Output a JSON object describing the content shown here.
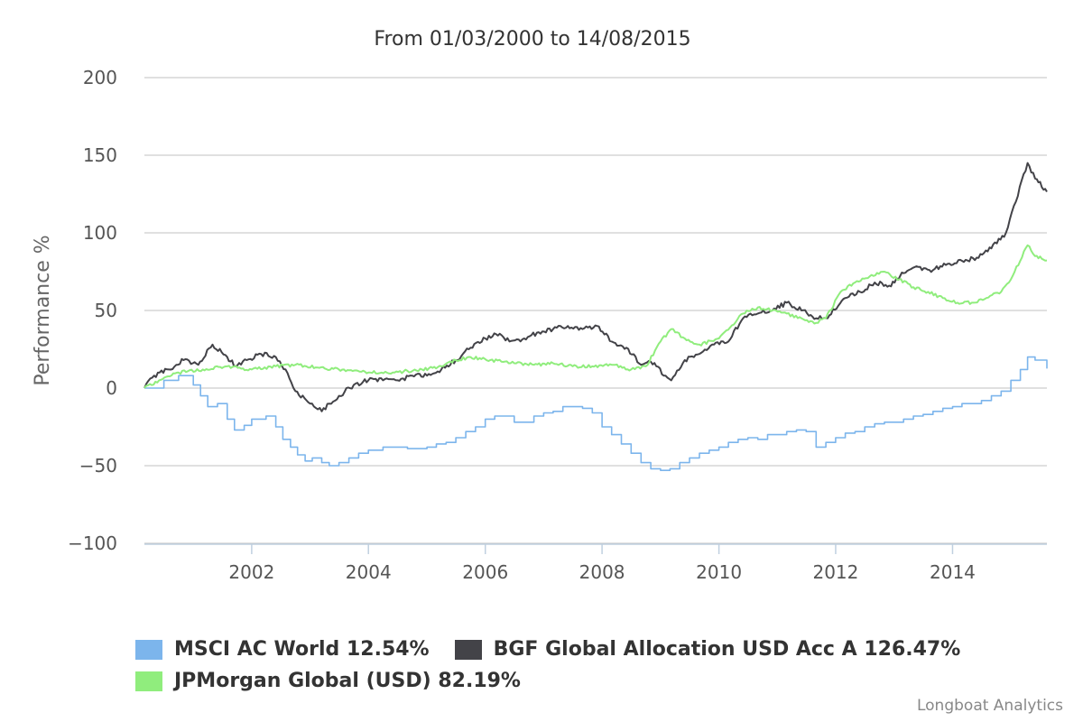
{
  "credits": "Longboat Analytics",
  "colors": {
    "msci": "#7cb5ec",
    "bgf": "#434348",
    "jpm": "#90ed7d",
    "grid": "#c0c0c0",
    "axis": "#c0d0e0"
  },
  "legend": [
    {
      "name": "MSCI AC World",
      "value": "12.54%",
      "color": "#7cb5ec"
    },
    {
      "name": "BGF Global Allocation USD Acc A",
      "value": "126.47%",
      "color": "#434348"
    },
    {
      "name": "JPMorgan Global (USD)",
      "value": "82.19%",
      "color": "#90ed7d"
    }
  ],
  "chart_data": {
    "type": "line",
    "title": "From 01/03/2000 to 14/08/2015",
    "xlabel": "",
    "ylabel": "Performance %",
    "x_ticks": [
      "2002",
      "2004",
      "2006",
      "2008",
      "2010",
      "2012",
      "2014"
    ],
    "y_ticks": [
      "200",
      "150",
      "100",
      "50",
      "0",
      "−50",
      "−100"
    ],
    "xlim": [
      "2000-03-01",
      "2015-08-14"
    ],
    "ylim": [
      -100,
      200
    ],
    "grid": true,
    "legend_position": "bottom-left",
    "series": [
      {
        "name": "MSCI AC World",
        "color": "#7cb5ec",
        "step": true,
        "x": [
          "2000-03-01",
          "2000-07-01",
          "2000-10-01",
          "2001-01-01",
          "2001-02-15",
          "2001-04-01",
          "2001-06-01",
          "2001-08-01",
          "2001-09-15",
          "2001-11-15",
          "2002-01-01",
          "2002-04-01",
          "2002-06-01",
          "2002-07-15",
          "2002-09-01",
          "2002-10-15",
          "2002-12-01",
          "2003-01-15",
          "2003-03-15",
          "2003-05-01",
          "2003-07-01",
          "2003-09-01",
          "2003-11-01",
          "2004-01-01",
          "2004-04-01",
          "2004-07-01",
          "2004-09-01",
          "2004-11-01",
          "2005-01-01",
          "2005-03-01",
          "2005-05-01",
          "2005-07-01",
          "2005-09-01",
          "2005-11-01",
          "2006-01-01",
          "2006-03-01",
          "2006-05-01",
          "2006-07-01",
          "2006-09-01",
          "2006-11-01",
          "2007-01-01",
          "2007-03-01",
          "2007-05-01",
          "2007-07-01",
          "2007-09-01",
          "2007-11-01",
          "2008-01-01",
          "2008-03-01",
          "2008-05-01",
          "2008-07-01",
          "2008-09-01",
          "2008-11-01",
          "2009-01-01",
          "2009-03-01",
          "2009-05-01",
          "2009-07-01",
          "2009-09-01",
          "2009-11-01",
          "2010-01-01",
          "2010-03-01",
          "2010-05-01",
          "2010-07-01",
          "2010-09-01",
          "2010-11-01",
          "2011-01-01",
          "2011-03-01",
          "2011-05-01",
          "2011-07-01",
          "2011-09-01",
          "2011-11-01",
          "2012-01-01",
          "2012-03-01",
          "2012-05-01",
          "2012-07-01",
          "2012-09-01",
          "2012-11-01",
          "2013-01-01",
          "2013-03-01",
          "2013-05-01",
          "2013-07-01",
          "2013-09-01",
          "2013-11-01",
          "2014-01-01",
          "2014-03-01",
          "2014-05-01",
          "2014-07-01",
          "2014-09-01",
          "2014-11-01",
          "2015-01-01",
          "2015-03-01",
          "2015-04-15",
          "2015-06-01",
          "2015-08-14"
        ],
        "y": [
          0,
          5,
          8,
          2,
          -5,
          -12,
          -10,
          -20,
          -27,
          -24,
          -20,
          -18,
          -25,
          -33,
          -38,
          -43,
          -47,
          -45,
          -48,
          -50,
          -48,
          -45,
          -42,
          -40,
          -38,
          -38,
          -39,
          -39,
          -38,
          -36,
          -35,
          -32,
          -28,
          -25,
          -20,
          -18,
          -18,
          -22,
          -22,
          -18,
          -16,
          -15,
          -12,
          -12,
          -13,
          -16,
          -25,
          -30,
          -36,
          -42,
          -48,
          -52,
          -53,
          -52,
          -48,
          -45,
          -42,
          -40,
          -38,
          -35,
          -33,
          -32,
          -33,
          -30,
          -30,
          -28,
          -27,
          -28,
          -38,
          -35,
          -32,
          -29,
          -28,
          -25,
          -23,
          -22,
          -22,
          -20,
          -18,
          -17,
          -15,
          -13,
          -12,
          -10,
          -10,
          -8,
          -5,
          -2,
          5,
          12,
          20,
          18,
          12.54
        ]
      },
      {
        "name": "BGF Global Allocation USD Acc A",
        "color": "#434348",
        "step": false,
        "x": [
          "2000-03-01",
          "2000-05-01",
          "2000-08-01",
          "2000-11-01",
          "2001-02-01",
          "2001-05-01",
          "2001-08-01",
          "2001-09-21",
          "2001-12-01",
          "2002-03-01",
          "2002-06-01",
          "2002-08-01",
          "2002-10-01",
          "2003-01-01",
          "2003-03-15",
          "2003-05-01",
          "2003-07-01",
          "2003-10-01",
          "2004-01-01",
          "2004-04-01",
          "2004-07-01",
          "2004-10-01",
          "2005-01-01",
          "2005-04-01",
          "2005-07-01",
          "2005-10-01",
          "2006-01-01",
          "2006-04-01",
          "2006-06-01",
          "2006-09-01",
          "2006-12-01",
          "2007-03-01",
          "2007-06-01",
          "2007-09-01",
          "2007-12-01",
          "2008-03-01",
          "2008-06-01",
          "2008-09-01",
          "2008-11-01",
          "2009-02-01",
          "2009-03-09",
          "2009-06-01",
          "2009-09-01",
          "2009-12-01",
          "2010-03-01",
          "2010-06-01",
          "2010-09-01",
          "2010-12-01",
          "2011-03-01",
          "2011-06-01",
          "2011-09-01",
          "2011-11-01",
          "2012-03-01",
          "2012-06-01",
          "2012-09-01",
          "2012-12-01",
          "2013-03-01",
          "2013-06-01",
          "2013-09-01",
          "2013-12-01",
          "2014-03-01",
          "2014-06-01",
          "2014-09-01",
          "2014-12-01",
          "2015-02-01",
          "2015-04-15",
          "2015-06-01",
          "2015-08-14"
        ],
        "y": [
          0,
          8,
          12,
          18,
          15,
          28,
          20,
          14,
          18,
          22,
          20,
          12,
          -2,
          -10,
          -15,
          -10,
          -5,
          2,
          5,
          5,
          5,
          8,
          8,
          12,
          18,
          26,
          32,
          35,
          30,
          32,
          36,
          38,
          40,
          38,
          40,
          30,
          26,
          15,
          17,
          8,
          5,
          18,
          22,
          28,
          30,
          45,
          48,
          50,
          55,
          50,
          45,
          45,
          58,
          62,
          68,
          66,
          74,
          78,
          76,
          80,
          82,
          84,
          90,
          100,
          120,
          145,
          135,
          126.47
        ]
      },
      {
        "name": "JPMorgan Global (USD)",
        "color": "#90ed7d",
        "step": false,
        "x": [
          "2000-03-01",
          "2000-06-01",
          "2000-10-01",
          "2001-03-01",
          "2001-08-01",
          "2002-01-01",
          "2002-06-01",
          "2002-10-01",
          "2003-03-01",
          "2003-08-01",
          "2004-01-01",
          "2004-06-01",
          "2004-12-01",
          "2005-04-01",
          "2005-07-01",
          "2005-10-01",
          "2006-02-01",
          "2006-07-01",
          "2006-11-01",
          "2007-03-01",
          "2007-07-01",
          "2007-11-01",
          "2008-03-01",
          "2008-07-01",
          "2008-10-01",
          "2009-01-01",
          "2009-03-09",
          "2009-06-01",
          "2009-09-01",
          "2010-01-01",
          "2010-06-01",
          "2010-09-01",
          "2010-12-01",
          "2011-03-01",
          "2011-06-01",
          "2011-09-01",
          "2011-11-01",
          "2012-02-01",
          "2012-05-01",
          "2012-08-01",
          "2012-11-01",
          "2013-02-01",
          "2013-05-01",
          "2013-08-01",
          "2013-11-01",
          "2014-02-01",
          "2014-05-01",
          "2014-08-01",
          "2014-11-01",
          "2015-01-01",
          "2015-04-15",
          "2015-06-01",
          "2015-08-14"
        ],
        "y": [
          0,
          5,
          10,
          12,
          14,
          12,
          14,
          15,
          13,
          12,
          10,
          10,
          12,
          14,
          18,
          20,
          18,
          16,
          15,
          16,
          14,
          14,
          15,
          12,
          14,
          30,
          38,
          32,
          28,
          32,
          48,
          52,
          50,
          48,
          45,
          42,
          45,
          62,
          68,
          72,
          75,
          70,
          65,
          62,
          58,
          55,
          55,
          58,
          62,
          70,
          92,
          85,
          82.19
        ]
      }
    ]
  }
}
